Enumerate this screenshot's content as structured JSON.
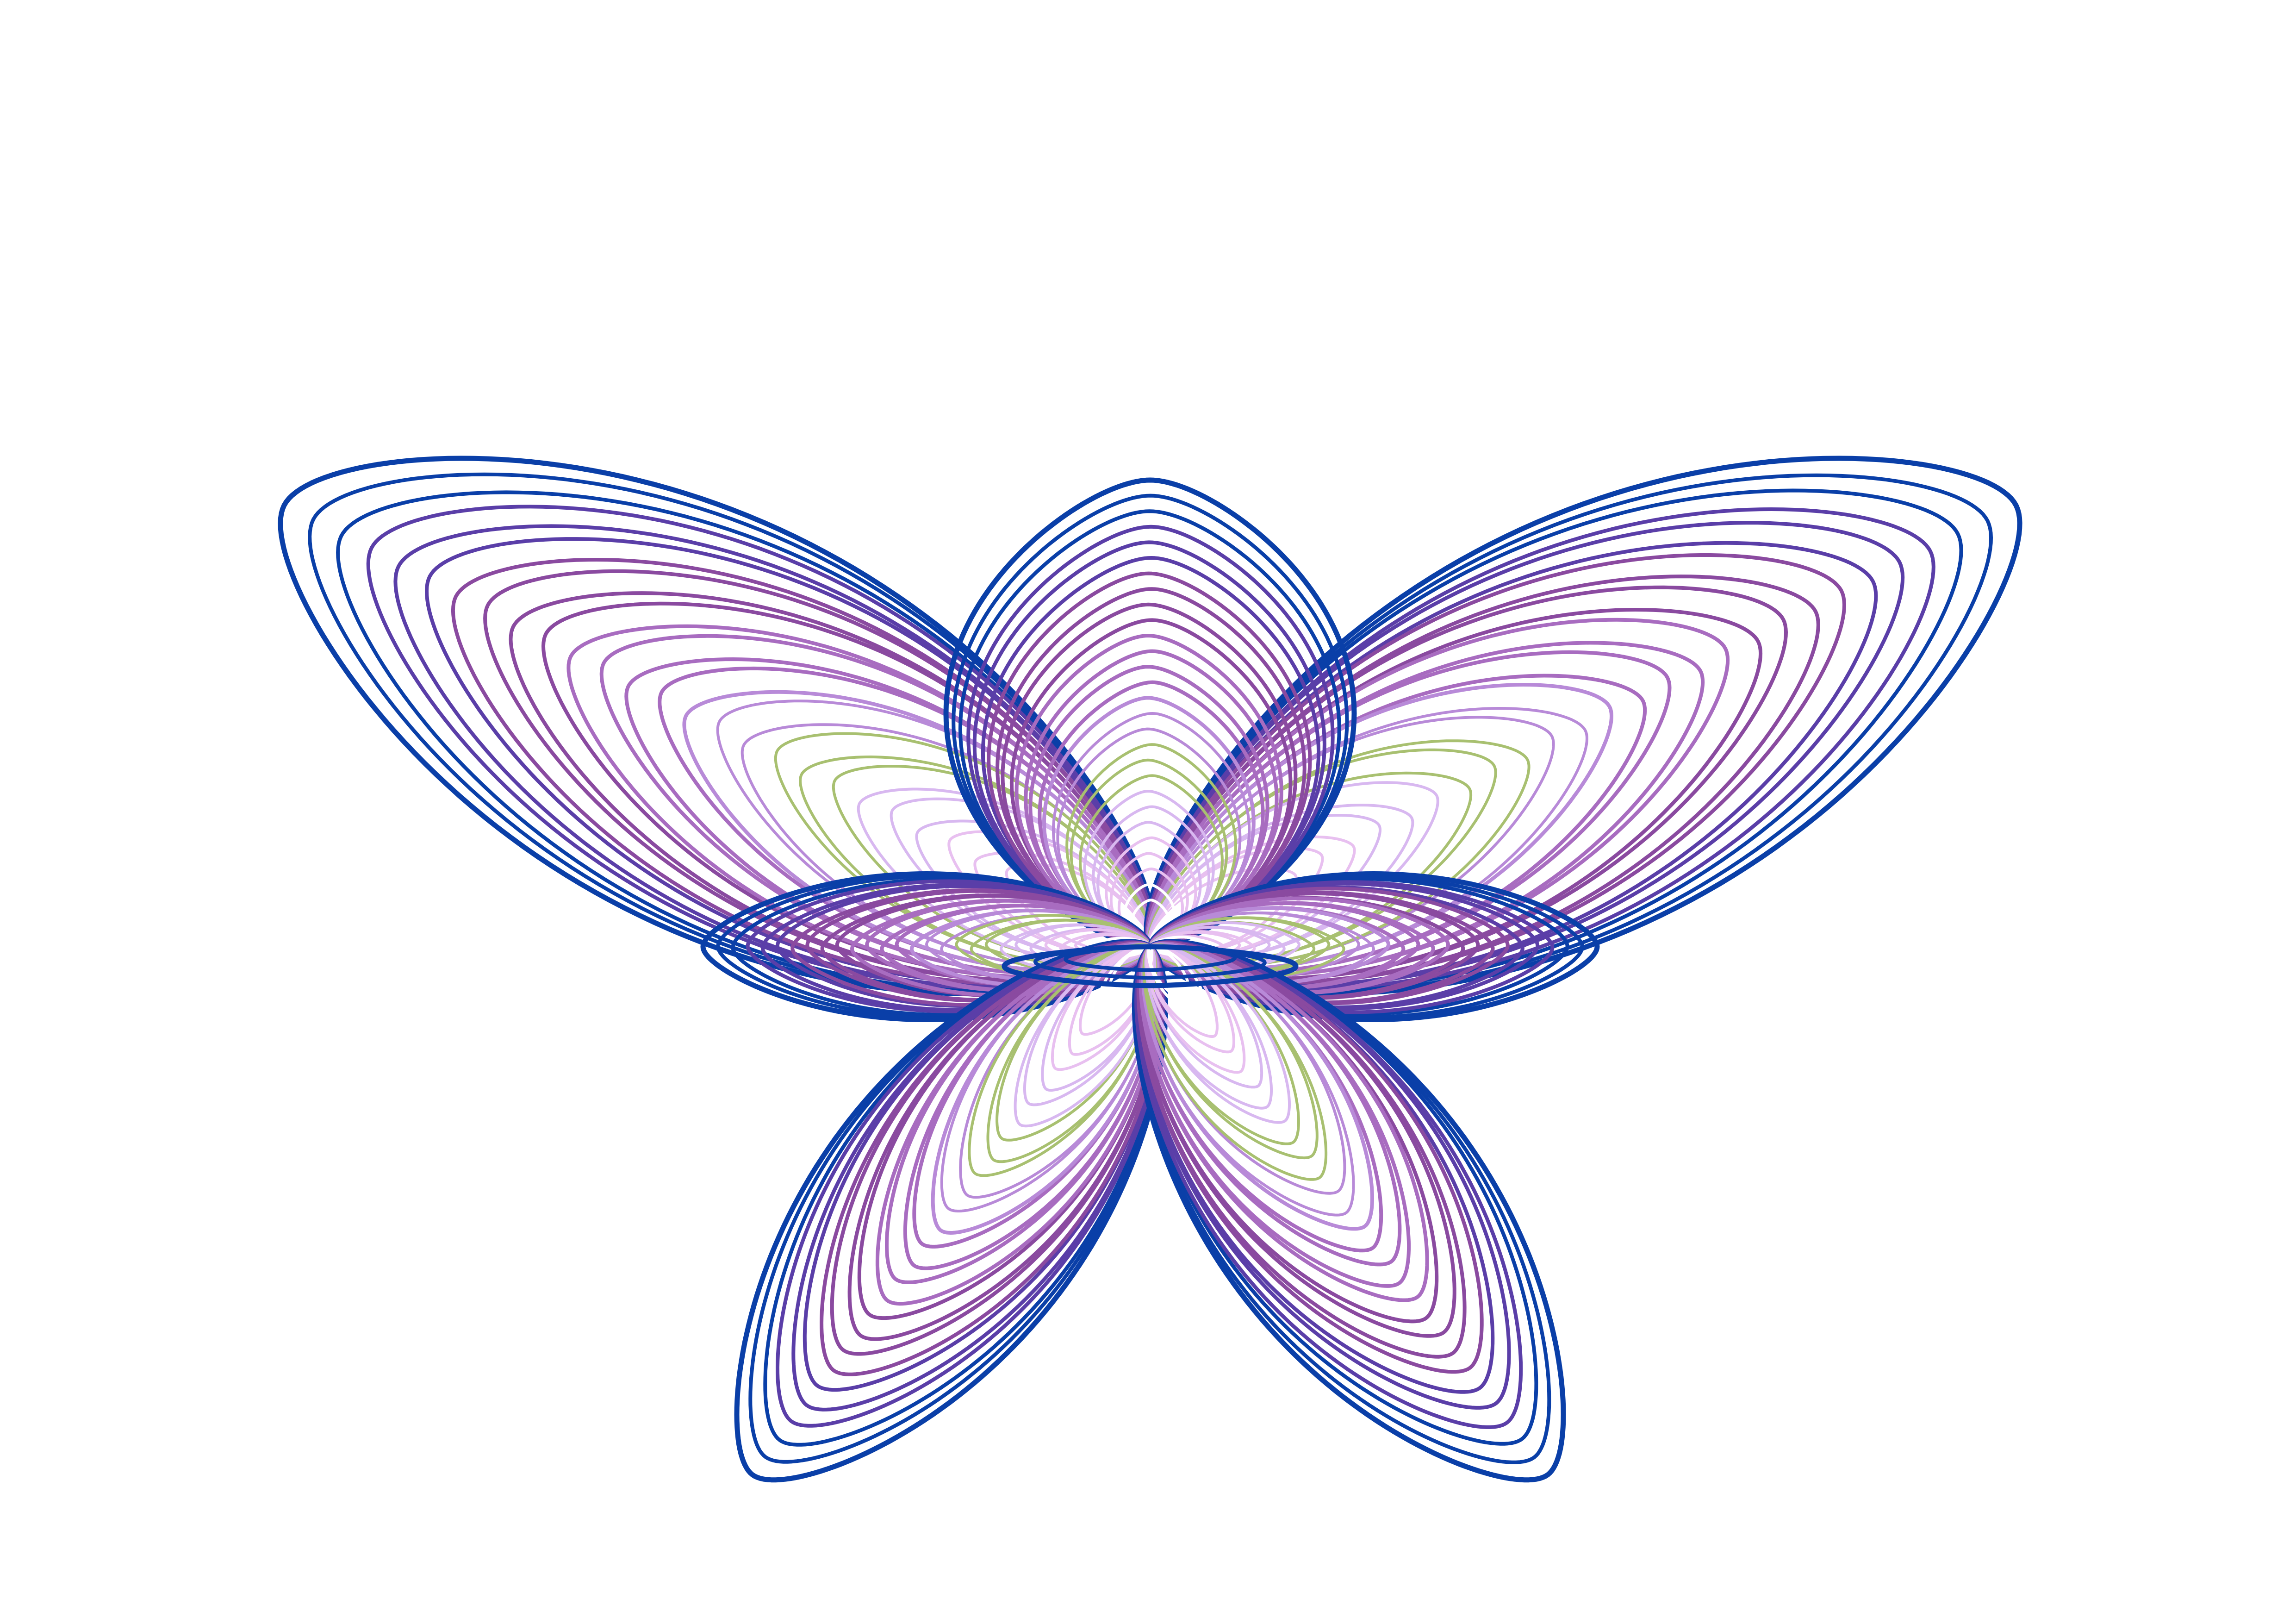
{
  "artwork": {
    "subject": "butterfly",
    "background_color": "#ffffff",
    "ring_count": 28,
    "palette": [
      "#0a3fa8",
      "#5a3ea8",
      "#8a4aa0",
      "#a86cc0",
      "#b88ad8",
      "#d8b8f0",
      "#ffffff",
      "#a8c070",
      "#e8c0f0"
    ],
    "lobes": [
      {
        "name": "upper-left-wing",
        "angle_deg": 207,
        "length": 1.0,
        "width": 0.42
      },
      {
        "name": "upper-right-wing",
        "angle_deg": 333,
        "length": 1.0,
        "width": 0.42
      },
      {
        "name": "top-petal",
        "angle_deg": 270,
        "length": 0.48,
        "width": 0.42
      },
      {
        "name": "left-petal",
        "angle_deg": 180,
        "length": 0.46,
        "width": 0.15
      },
      {
        "name": "right-petal",
        "angle_deg": 0,
        "length": 0.46,
        "width": 0.15
      },
      {
        "name": "lower-left-wing",
        "angle_deg": 127,
        "length": 0.68,
        "width": 0.28
      },
      {
        "name": "lower-right-wing",
        "angle_deg": 53,
        "length": 0.68,
        "width": 0.28
      },
      {
        "name": "tail",
        "angle_deg": 90,
        "length": 0.04,
        "width": 0.3
      }
    ]
  }
}
